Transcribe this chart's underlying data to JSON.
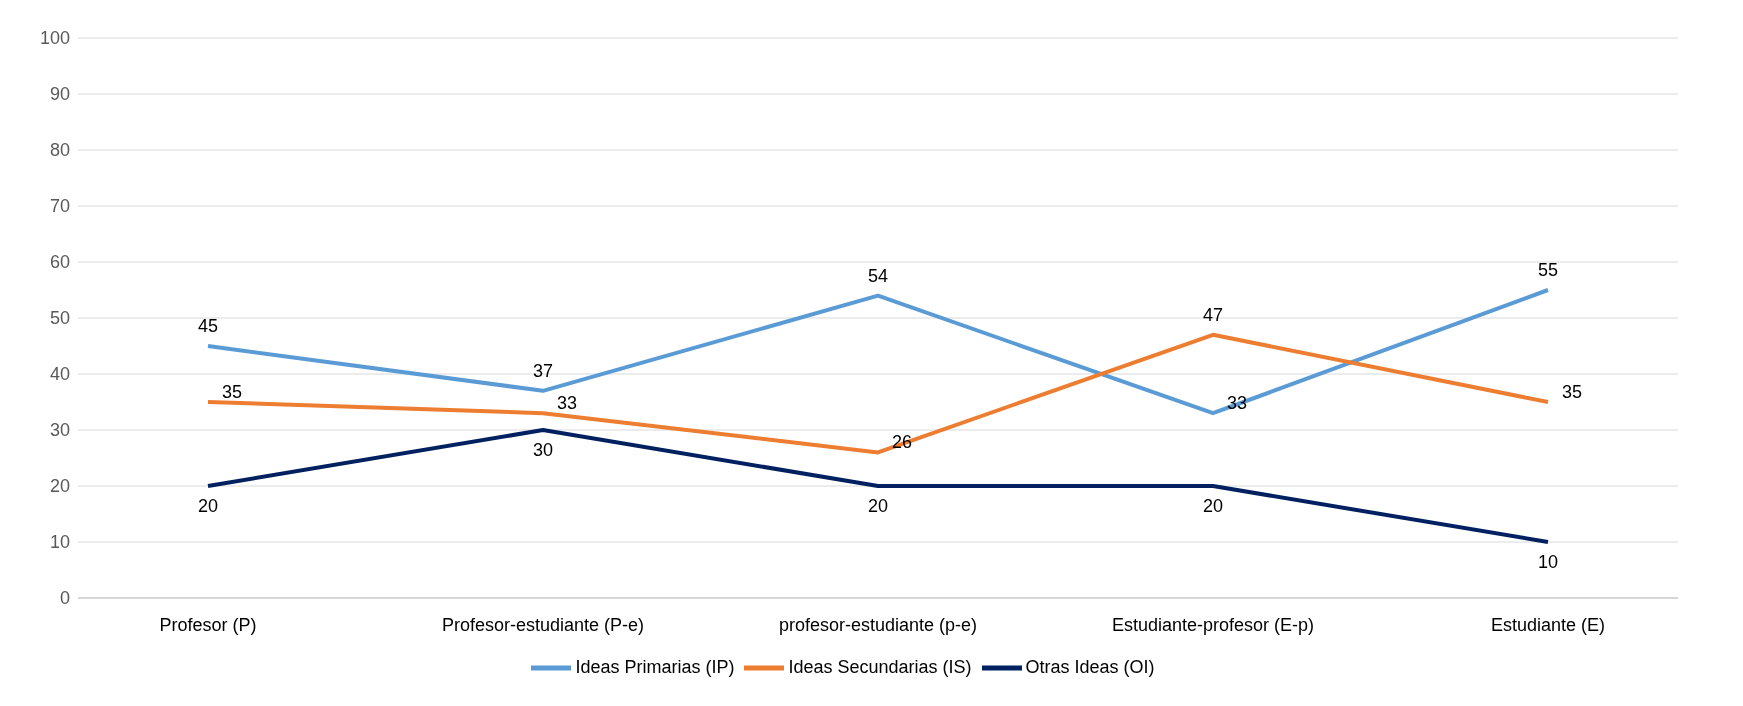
{
  "chart_data": {
    "type": "line",
    "categories": [
      "Profesor (P)",
      "Profesor-estudiante (P-e)",
      "profesor-estudiante (p-e)",
      "Estudiante-profesor (E-p)",
      "Estudiante (E)"
    ],
    "series": [
      {
        "name": "Ideas Primarias (IP)",
        "color": "#5b9bd5",
        "values": [
          45,
          37,
          54,
          33,
          55
        ]
      },
      {
        "name": "Ideas Secundarias (IS)",
        "color": "#ed7d31",
        "values": [
          35,
          33,
          26,
          47,
          35
        ]
      },
      {
        "name": "Otras Ideas (OI)",
        "color": "#002060",
        "values": [
          20,
          30,
          20,
          20,
          10
        ]
      }
    ],
    "ylim": [
      0,
      100
    ],
    "yticks": [
      0,
      10,
      20,
      30,
      40,
      50,
      60,
      70,
      80,
      90,
      100
    ],
    "grid": "y",
    "legend": "bottom",
    "marker": "none",
    "line_style": "solid",
    "data_labels": true
  }
}
